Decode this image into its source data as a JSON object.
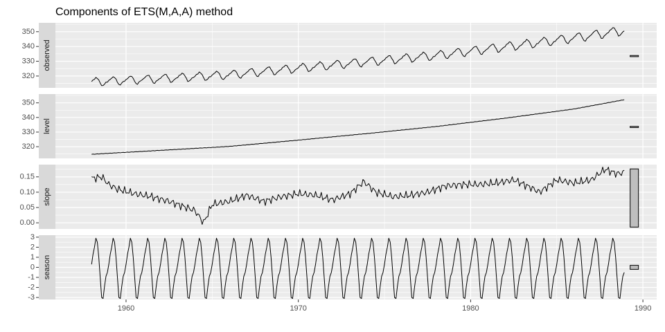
{
  "chart_data": {
    "type": "line",
    "title": "Components of ETS(M,A,A) method",
    "xlabel": "",
    "ylabel": "",
    "grid": true,
    "background": "#EBEBEB",
    "strip_color": "#D9D9D9",
    "line_color": "#000000",
    "bar_fill": "#BEBEBE",
    "x_ticks": [
      1960,
      1970,
      1980,
      1990
    ],
    "xlim": [
      1955.9,
      1990.8
    ],
    "time_start": 1958.0,
    "time_end": 1988.95,
    "panels": [
      {
        "name": "observed",
        "ylim": [
          312,
          356
        ],
        "ticks": [
          320,
          330,
          340,
          350
        ],
        "tick_labels": [
          "320",
          "330",
          "340",
          "350"
        ],
        "trend": [
          [
            1958.0,
            316.0
          ],
          [
            1962.0,
            318.3
          ],
          [
            1966.0,
            320.9
          ],
          [
            1970.0,
            325.4
          ],
          [
            1974.0,
            329.7
          ],
          [
            1978.0,
            334.0
          ],
          [
            1982.0,
            339.8
          ],
          [
            1986.0,
            345.8
          ],
          [
            1988.95,
            351.0
          ]
        ],
        "amplitude": 2.8,
        "range_bar": [
          333.1,
          333.9
        ]
      },
      {
        "name": "level",
        "ylim": [
          312,
          356
        ],
        "ticks": [
          320,
          330,
          340,
          350
        ],
        "tick_labels": [
          "320",
          "330",
          "340",
          "350"
        ],
        "trend": [
          [
            1958.0,
            314.8
          ],
          [
            1962.0,
            317.5
          ],
          [
            1966.0,
            320.2
          ],
          [
            1970.0,
            324.5
          ],
          [
            1974.0,
            329.0
          ],
          [
            1978.0,
            333.8
          ],
          [
            1982.0,
            339.5
          ],
          [
            1986.0,
            345.8
          ],
          [
            1988.95,
            352.2
          ]
        ],
        "range_bar": [
          333.1,
          333.9
        ]
      },
      {
        "name": "slope",
        "ylim": [
          -0.02,
          0.19
        ],
        "ticks": [
          0.0,
          0.05,
          0.1,
          0.15
        ],
        "tick_labels": [
          "0.00",
          "0.05",
          "0.10",
          "0.15"
        ],
        "trend": [
          [
            1958.0,
            0.145
          ],
          [
            1958.6,
            0.15
          ],
          [
            1959.0,
            0.125
          ],
          [
            1959.5,
            0.11
          ],
          [
            1960.5,
            0.095
          ],
          [
            1961.5,
            0.085
          ],
          [
            1962.5,
            0.07
          ],
          [
            1963.5,
            0.05
          ],
          [
            1964.0,
            0.04
          ],
          [
            1964.5,
            0.0
          ],
          [
            1965.0,
            0.06
          ],
          [
            1966.0,
            0.07
          ],
          [
            1967.0,
            0.09
          ],
          [
            1968.0,
            0.07
          ],
          [
            1969.0,
            0.085
          ],
          [
            1970.0,
            0.095
          ],
          [
            1971.0,
            0.09
          ],
          [
            1972.0,
            0.075
          ],
          [
            1973.0,
            0.095
          ],
          [
            1973.8,
            0.135
          ],
          [
            1974.5,
            0.1
          ],
          [
            1975.5,
            0.085
          ],
          [
            1976.5,
            0.09
          ],
          [
            1977.5,
            0.1
          ],
          [
            1978.5,
            0.12
          ],
          [
            1979.5,
            0.125
          ],
          [
            1980.5,
            0.125
          ],
          [
            1981.5,
            0.13
          ],
          [
            1982.5,
            0.14
          ],
          [
            1983.5,
            0.115
          ],
          [
            1984.0,
            0.1
          ],
          [
            1985.0,
            0.14
          ],
          [
            1986.0,
            0.13
          ],
          [
            1987.0,
            0.14
          ],
          [
            1987.8,
            0.175
          ],
          [
            1988.5,
            0.16
          ],
          [
            1988.95,
            0.165
          ]
        ],
        "range_bar": [
          -0.014,
          0.176
        ]
      },
      {
        "name": "season",
        "ylim": [
          -3.2,
          3.2
        ],
        "ticks": [
          -3,
          -2,
          -1,
          0,
          1,
          2,
          3
        ],
        "tick_labels": [
          "-3",
          "-2",
          "-1",
          "0",
          "1",
          "2",
          "3"
        ],
        "seasonal_pattern": [
          0.3,
          1.3,
          2.0,
          2.9,
          2.5,
          1.0,
          -1.0,
          -3.0,
          -3.1,
          -1.9,
          -0.9,
          -0.5
        ],
        "range_bar": [
          -0.2,
          0.2
        ]
      }
    ]
  }
}
